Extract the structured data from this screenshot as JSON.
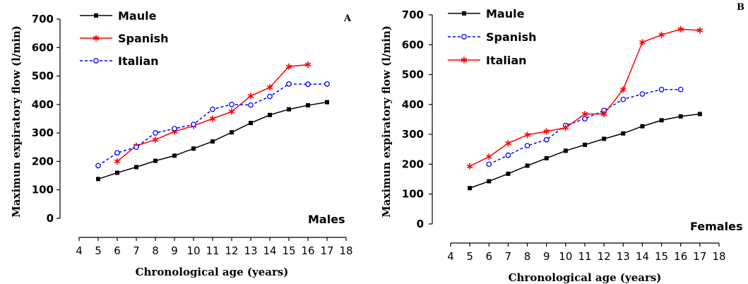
{
  "chart_data": [
    {
      "type": "line",
      "panel": "A",
      "group": "Males",
      "xlabel": "Chronological age (years)",
      "ylabel": "Maximun expiratory flow (l/min)",
      "xlim": [
        4,
        18
      ],
      "ylim": [
        0,
        700
      ],
      "xticks": [
        4,
        5,
        6,
        7,
        8,
        9,
        10,
        11,
        12,
        13,
        14,
        15,
        16,
        17,
        18
      ],
      "yticks": [
        0,
        100,
        200,
        300,
        400,
        500,
        600,
        700
      ],
      "legend_position": "top-left",
      "series": [
        {
          "name": "Maule",
          "color": "#000000",
          "marker": "square",
          "dash": "solid",
          "x": [
            5,
            6,
            7,
            8,
            9,
            10,
            11,
            12,
            13,
            14,
            15,
            16,
            17
          ],
          "y": [
            138,
            160,
            180,
            202,
            220,
            245,
            270,
            302,
            335,
            363,
            383,
            397,
            408
          ]
        },
        {
          "name": "Spanish",
          "color": "#ff0000",
          "marker": "star",
          "dash": "solid",
          "x": [
            6,
            7,
            8,
            9,
            10,
            11,
            12,
            13,
            14,
            15,
            16
          ],
          "y": [
            200,
            255,
            276,
            305,
            325,
            350,
            375,
            430,
            460,
            533,
            540
          ]
        },
        {
          "name": "Italian",
          "color": "#0000ff",
          "marker": "circle",
          "dash": "dashed",
          "x": [
            5,
            6,
            7,
            8,
            9,
            10,
            11,
            12,
            13,
            14,
            15,
            16,
            17
          ],
          "y": [
            185,
            230,
            250,
            300,
            315,
            330,
            383,
            400,
            398,
            428,
            472,
            471,
            472
          ]
        }
      ]
    },
    {
      "type": "line",
      "panel": "B",
      "group": "Females",
      "xlabel": "Chronological age (years)",
      "ylabel": "Maximun expiratory flow (l/min)",
      "xlim": [
        4,
        18
      ],
      "ylim": [
        0,
        700
      ],
      "xticks": [
        4,
        5,
        6,
        7,
        8,
        9,
        10,
        11,
        12,
        13,
        14,
        15,
        16,
        17,
        18
      ],
      "yticks": [
        0,
        100,
        200,
        300,
        400,
        500,
        600,
        700
      ],
      "legend_position": "top-left",
      "series": [
        {
          "name": "Maule",
          "color": "#000000",
          "marker": "square",
          "dash": "solid",
          "x": [
            5,
            6,
            7,
            8,
            9,
            10,
            11,
            12,
            13,
            14,
            15,
            16,
            17
          ],
          "y": [
            120,
            143,
            168,
            195,
            220,
            245,
            265,
            285,
            303,
            327,
            347,
            360,
            368
          ]
        },
        {
          "name": "Spanish",
          "color": "#0000ff",
          "marker": "circle",
          "dash": "dashed",
          "x": [
            6,
            7,
            8,
            9,
            10,
            11,
            12,
            13,
            14,
            15,
            16
          ],
          "y": [
            200,
            230,
            262,
            282,
            330,
            352,
            380,
            417,
            435,
            450,
            450
          ]
        },
        {
          "name": "Italian",
          "color": "#ff0000",
          "marker": "star",
          "dash": "solid",
          "x": [
            5,
            6,
            7,
            8,
            9,
            10,
            11,
            12,
            13,
            14,
            15,
            16,
            17
          ],
          "y": [
            193,
            225,
            270,
            298,
            310,
            322,
            368,
            368,
            450,
            608,
            633,
            652,
            648
          ]
        }
      ]
    }
  ]
}
